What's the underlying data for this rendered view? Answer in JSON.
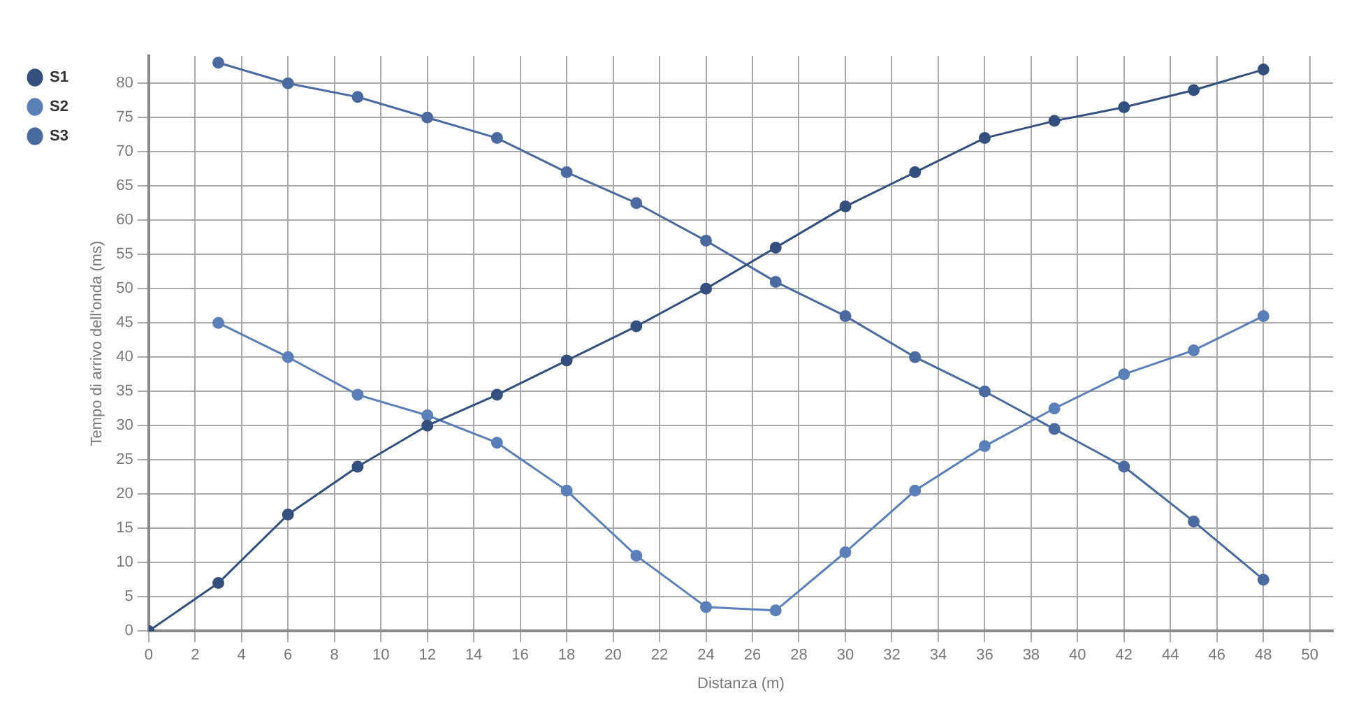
{
  "chart_data": {
    "type": "line",
    "xlabel": "Distanza (m)",
    "ylabel": "Tempo di arrivo dell'onda (ms)",
    "xlim": [
      0,
      51
    ],
    "xticks": [
      0,
      2,
      4,
      6,
      8,
      10,
      12,
      14,
      16,
      18,
      20,
      22,
      24,
      26,
      28,
      30,
      32,
      34,
      36,
      38,
      40,
      42,
      44,
      46,
      48,
      50
    ],
    "ylim": [
      0,
      84
    ],
    "yticks": [
      0,
      5,
      10,
      15,
      20,
      25,
      30,
      35,
      40,
      45,
      50,
      55,
      60,
      65,
      70,
      75,
      80
    ],
    "grid": true,
    "legend": "top left",
    "marker": "circle",
    "line_style": "solid",
    "series": [
      {
        "name": "S1",
        "color": "#34507e",
        "x": [
          0,
          3,
          6,
          9,
          12,
          15,
          18,
          21,
          24,
          27,
          30,
          33,
          36,
          39,
          42,
          45,
          48
        ],
        "values": [
          0,
          7,
          17,
          24,
          30,
          34.5,
          39.5,
          44.5,
          50,
          56,
          62,
          67,
          72,
          74.5,
          76.5,
          79,
          82
        ]
      },
      {
        "name": "S2",
        "color": "#5b7fb8",
        "x": [
          3,
          6,
          9,
          12,
          15,
          18,
          21,
          24,
          27,
          30,
          33,
          36,
          39,
          42,
          45,
          48
        ],
        "values": [
          45,
          40,
          34.5,
          31.5,
          27.5,
          20.5,
          11,
          3.5,
          3,
          11.5,
          20.5,
          27,
          32.5,
          37.5,
          41,
          46
        ]
      },
      {
        "name": "S3",
        "color": "#4a6aa0",
        "x": [
          3,
          6,
          9,
          12,
          15,
          18,
          21,
          24,
          27,
          30,
          33,
          36,
          39,
          42,
          45,
          48
        ],
        "values": [
          83,
          80,
          78,
          75,
          72,
          67,
          62.5,
          57,
          51,
          46,
          40,
          35,
          29.5,
          24,
          16,
          7.5
        ]
      }
    ]
  }
}
